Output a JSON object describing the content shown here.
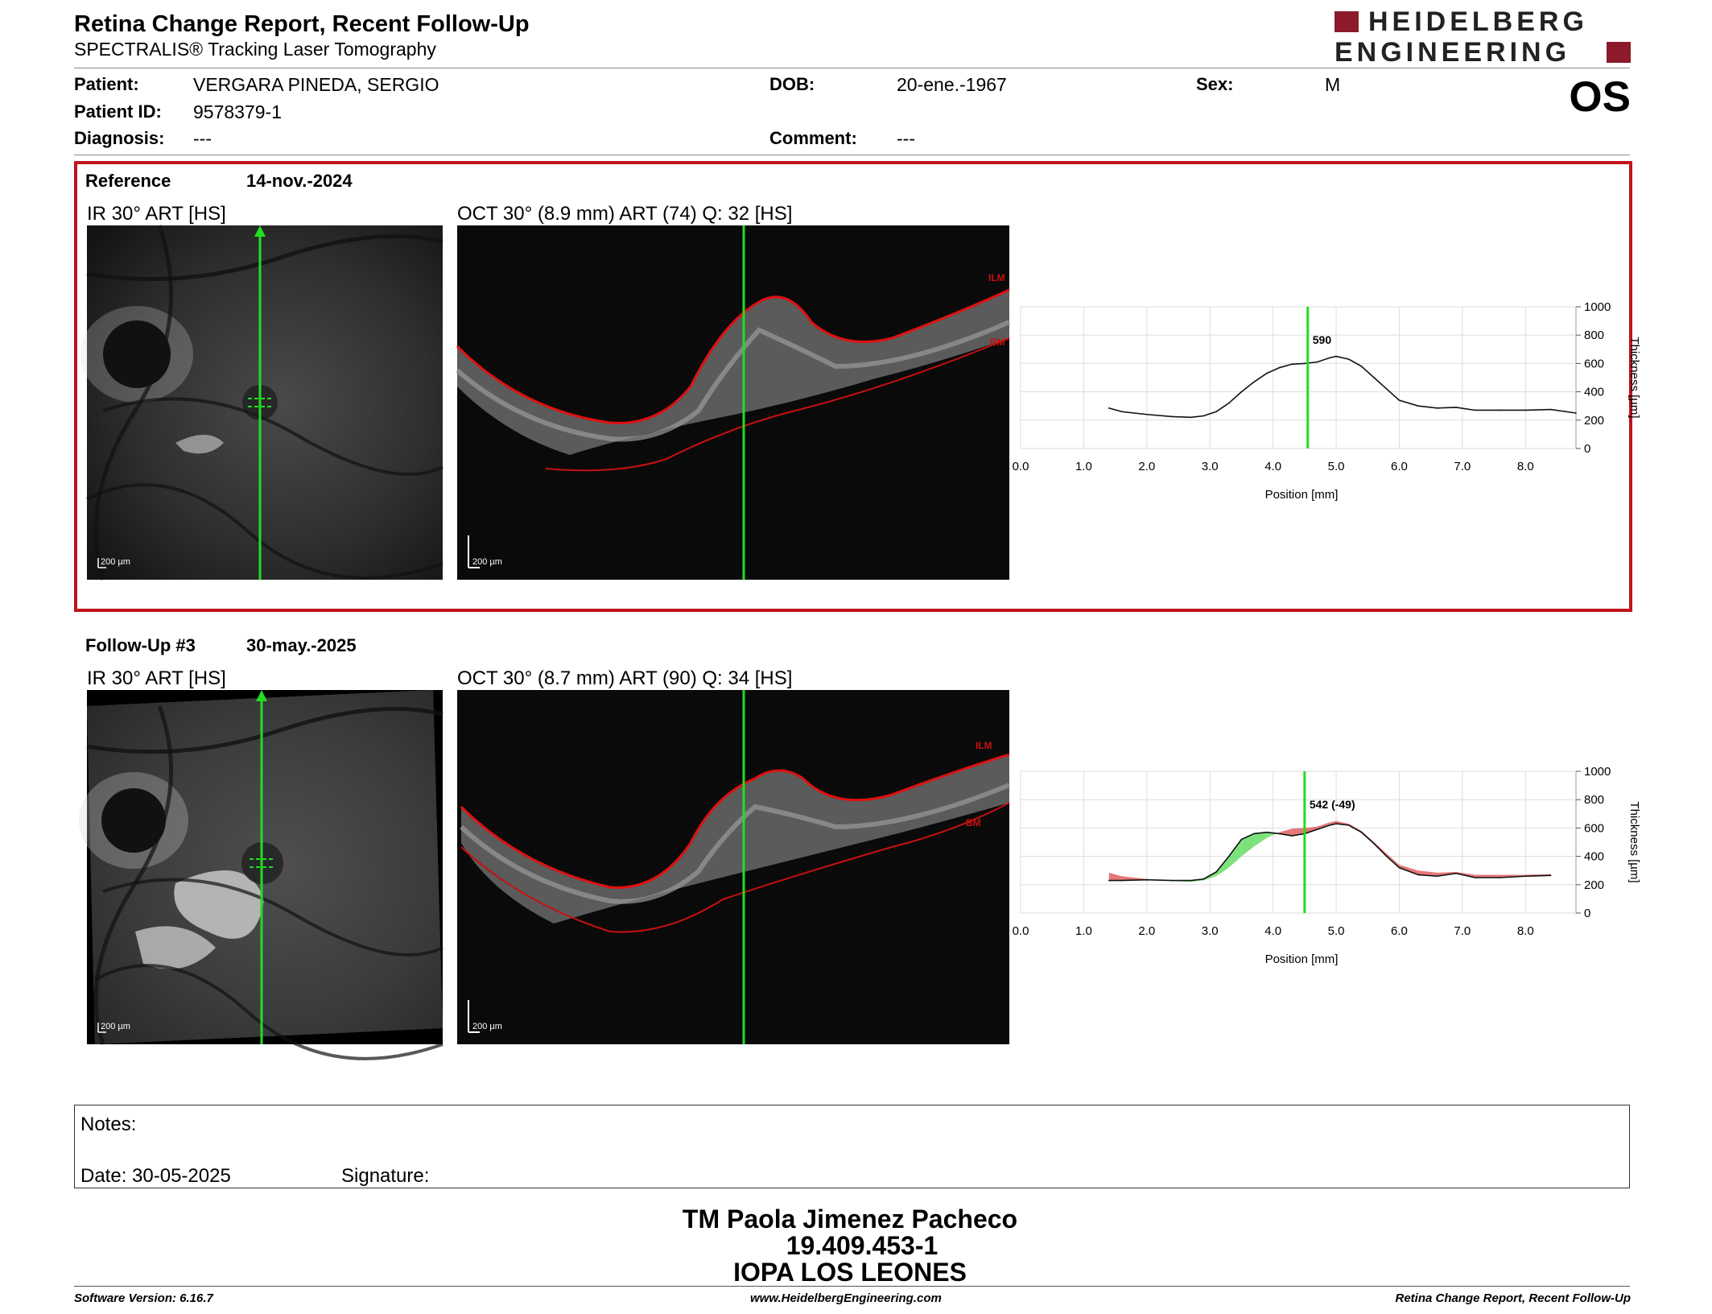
{
  "header": {
    "title": "Retina Change Report, Recent Follow-Up",
    "subtitle": "SPECTRALIS® Tracking Laser Tomography",
    "logo_line1": "HEIDELBERG",
    "logo_line2": "ENGINEERING",
    "eye": "OS"
  },
  "patient": {
    "name_label": "Patient:",
    "name": "VERGARA PINEDA, SERGIO",
    "id_label": "Patient ID:",
    "id": "9578379-1",
    "diagnosis_label": "Diagnosis:",
    "diagnosis": "---",
    "dob_label": "DOB:",
    "dob": "20-ene.-1967",
    "comment_label": "Comment:",
    "comment": "---",
    "sex_label": "Sex:",
    "sex": "M"
  },
  "reference": {
    "label": "Reference",
    "date": "14-nov.-2024",
    "ir_caption": "IR 30° ART [HS]",
    "oct_caption": "OCT 30° (8.9 mm) ART (74) Q: 32 [HS]",
    "scale_ir": "200 µm",
    "scale_oct": "200 µm",
    "ilm_label": "ILM",
    "bm_label": "BM"
  },
  "followup": {
    "label": "Follow-Up #3",
    "date": "30-may.-2025",
    "ir_caption": "IR 30° ART [HS]",
    "oct_caption": "OCT 30° (8.7 mm) ART (90) Q: 34 [HS]",
    "scale_ir": "200 µm",
    "scale_oct": "200 µm",
    "ilm_label": "ILM",
    "bm_label": "BM"
  },
  "colors": {
    "frame": "#c0141c",
    "scan_line": "#22dd22",
    "trace": "#e01010",
    "loss": "#e06060",
    "gain": "#66dd66"
  },
  "chart_data": [
    {
      "type": "line",
      "name": "reference-thickness",
      "xlabel": "Position [mm]",
      "ylabel": "Thickness [µm]",
      "xlim": [
        0,
        8.8
      ],
      "ylim": [
        0,
        1000
      ],
      "xticks": [
        "0.0",
        "1.0",
        "2.0",
        "3.0",
        "4.0",
        "5.0",
        "6.0",
        "7.0",
        "8.0"
      ],
      "yticks": [
        "0",
        "200",
        "400",
        "600",
        "800",
        "1000"
      ],
      "grid": true,
      "marker_x": 4.55,
      "marker_label": "590",
      "x": [
        1.4,
        1.6,
        2.0,
        2.4,
        2.7,
        2.9,
        3.1,
        3.3,
        3.5,
        3.7,
        3.9,
        4.1,
        4.3,
        4.5,
        4.7,
        4.9,
        5.0,
        5.2,
        5.4,
        5.6,
        5.8,
        6.0,
        6.3,
        6.6,
        6.9,
        7.2,
        7.6,
        8.0,
        8.4,
        8.8
      ],
      "y": [
        285,
        260,
        240,
        225,
        220,
        230,
        260,
        320,
        400,
        470,
        530,
        570,
        595,
        600,
        610,
        640,
        650,
        630,
        580,
        500,
        420,
        340,
        300,
        285,
        290,
        270,
        270,
        270,
        275,
        250
      ]
    },
    {
      "type": "line",
      "name": "followup-thickness",
      "xlabel": "Position [mm]",
      "ylabel": "Thickness [µm]",
      "xlim": [
        0,
        8.8
      ],
      "ylim": [
        0,
        1000
      ],
      "xticks": [
        "0.0",
        "1.0",
        "2.0",
        "3.0",
        "4.0",
        "5.0",
        "6.0",
        "7.0",
        "8.0"
      ],
      "yticks": [
        "0",
        "200",
        "400",
        "600",
        "800",
        "1000"
      ],
      "grid": true,
      "marker_x": 4.5,
      "marker_label": "542 (-49)",
      "x": [
        1.4,
        1.6,
        2.0,
        2.4,
        2.7,
        2.9,
        3.1,
        3.3,
        3.5,
        3.7,
        3.9,
        4.1,
        4.3,
        4.5,
        4.7,
        4.9,
        5.0,
        5.2,
        5.4,
        5.6,
        5.8,
        6.0,
        6.3,
        6.6,
        6.9,
        7.2,
        7.6,
        8.0,
        8.4
      ],
      "y": [
        230,
        230,
        235,
        230,
        230,
        240,
        290,
        400,
        520,
        560,
        570,
        560,
        545,
        560,
        590,
        620,
        630,
        620,
        570,
        490,
        400,
        320,
        270,
        260,
        280,
        250,
        250,
        260,
        265
      ],
      "reference_y": [
        285,
        260,
        240,
        225,
        220,
        230,
        260,
        320,
        400,
        470,
        530,
        570,
        595,
        600,
        610,
        640,
        650,
        630,
        580,
        500,
        420,
        340,
        300,
        285,
        290,
        270,
        270,
        270,
        275
      ]
    }
  ],
  "notes": {
    "notes_label": "Notes:",
    "date_label": "Date: 30-05-2025",
    "signature_label": "Signature:"
  },
  "signature_block": {
    "name": "TM Paola Jimenez Pacheco",
    "rut": "19.409.453-1",
    "institution": "IOPA LOS LEONES"
  },
  "footer": {
    "software": "Software Version: 6.16.7",
    "website": "www.HeidelbergEngineering.com",
    "report": "Retina Change Report, Recent Follow-Up"
  }
}
